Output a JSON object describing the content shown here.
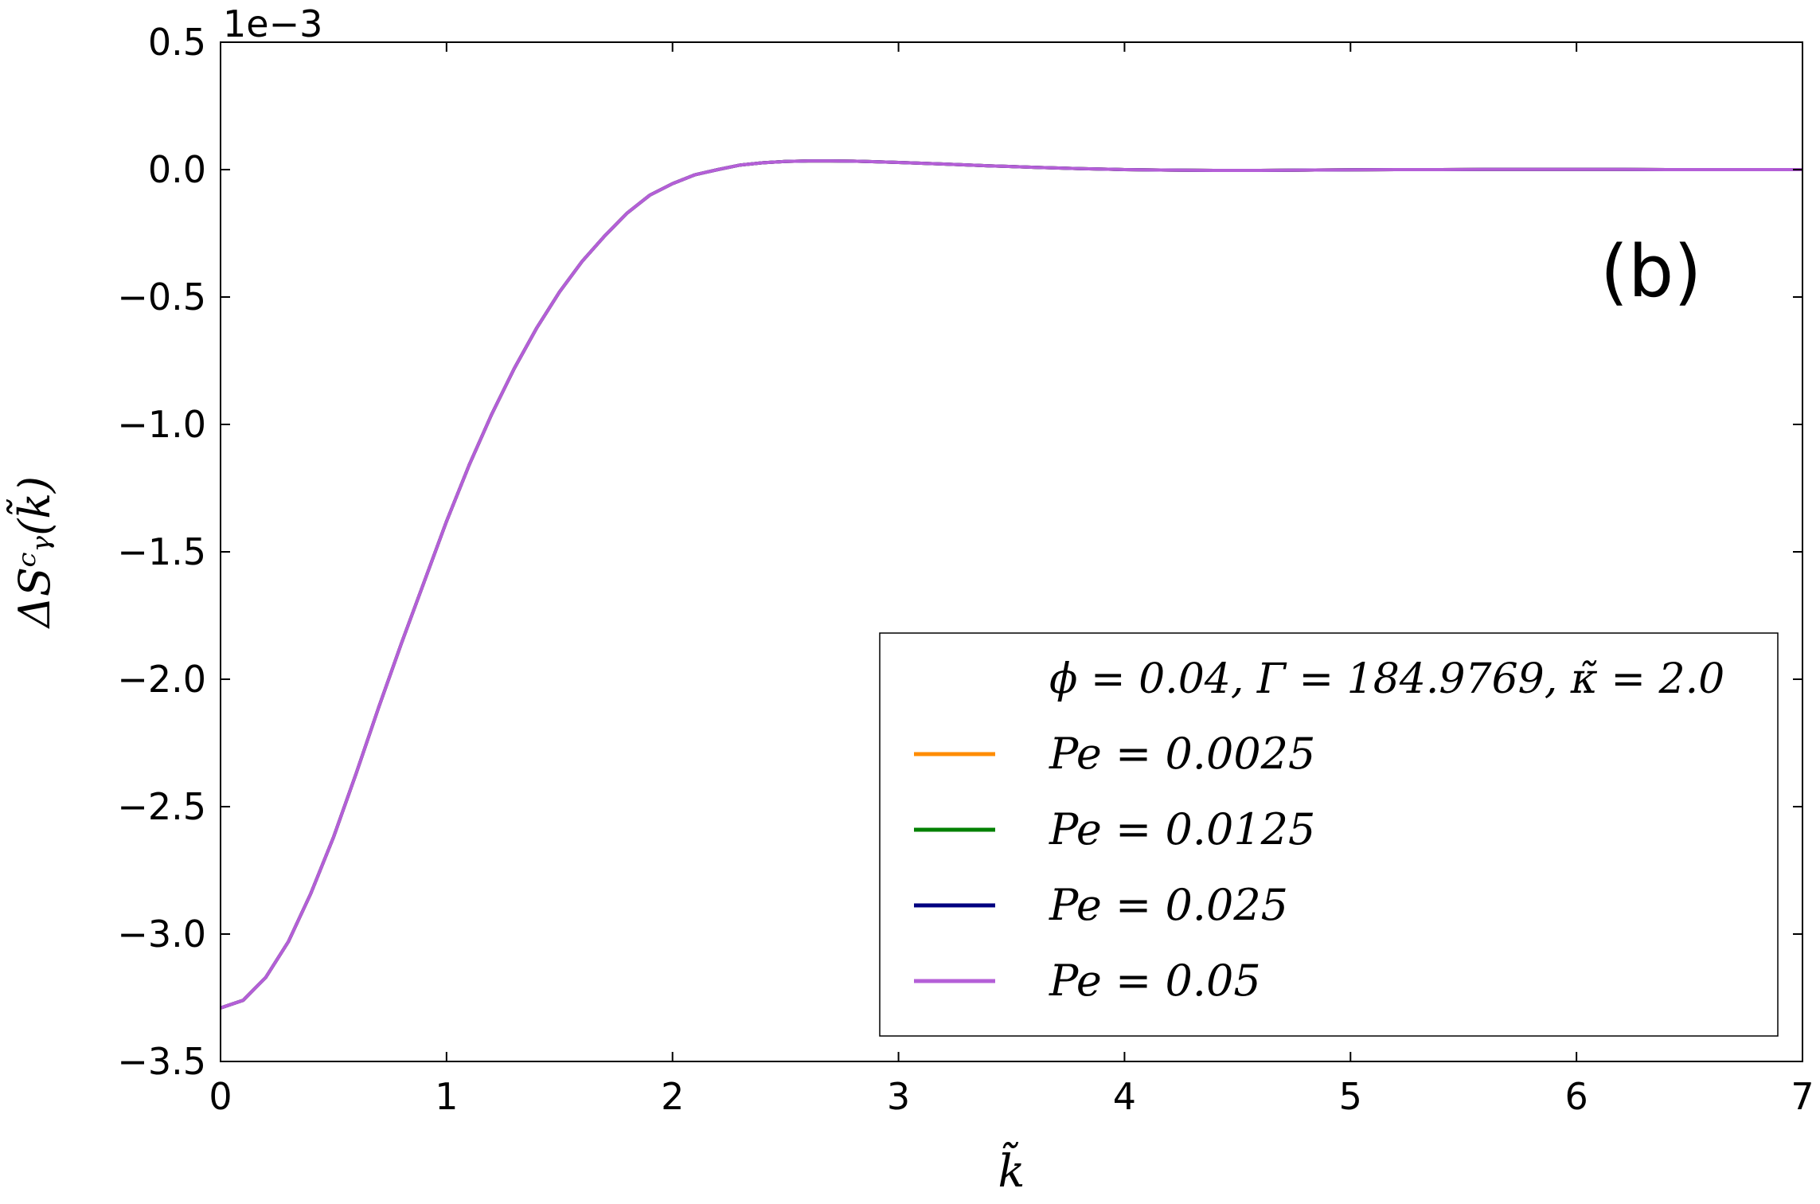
{
  "chart_data": {
    "type": "line",
    "title": "",
    "panel_label": "(b)",
    "xlabel": "k̃",
    "ylabel": "ΔSᶜᵧ(k̃)",
    "y_offset_text": "1e−3",
    "xlim": [
      0,
      7
    ],
    "ylim": [
      -3.5,
      0.5
    ],
    "y_multiplier": 0.001,
    "xticks": [
      0,
      1,
      2,
      3,
      4,
      5,
      6,
      7
    ],
    "xtick_labels": [
      "0",
      "1",
      "2",
      "3",
      "4",
      "5",
      "6",
      "7"
    ],
    "yticks": [
      0.5,
      0.0,
      -0.5,
      -1.0,
      -1.5,
      -2.0,
      -2.5,
      -3.0,
      -3.5
    ],
    "ytick_labels": [
      "0.5",
      "0.0",
      "−0.5",
      "−1.0",
      "−1.5",
      "−2.0",
      "−2.5",
      "−3.0",
      "−3.5"
    ],
    "grid": false,
    "legend": {
      "placement": "lower-right",
      "title": "ϕ = 0.04, Γ = 184.9769, κ̃ = 2.0"
    },
    "x": [
      0,
      0.1,
      0.2,
      0.3,
      0.4,
      0.5,
      0.6,
      0.7,
      0.8,
      0.9,
      1.0,
      1.1,
      1.2,
      1.3,
      1.4,
      1.5,
      1.6,
      1.7,
      1.8,
      1.9,
      2.0,
      2.1,
      2.2,
      2.3,
      2.4,
      2.5,
      2.6,
      2.7,
      2.8,
      2.9,
      3.0,
      3.2,
      3.4,
      3.6,
      3.8,
      4.0,
      4.2,
      4.4,
      4.6,
      4.8,
      5.0,
      5.2,
      5.4,
      5.6,
      5.8,
      6.0,
      6.2,
      6.4,
      6.6,
      6.8,
      7.0
    ],
    "series": [
      {
        "name": "Pe = 0.0025",
        "color": "#ff8c00",
        "values": [
          -3.29,
          -3.26,
          -3.17,
          -3.03,
          -2.84,
          -2.62,
          -2.37,
          -2.11,
          -1.86,
          -1.62,
          -1.38,
          -1.16,
          -0.96,
          -0.78,
          -0.62,
          -0.48,
          -0.36,
          -0.26,
          -0.17,
          -0.1,
          -0.055,
          -0.02,
          0.0,
          0.018,
          0.027,
          0.032,
          0.034,
          0.034,
          0.033,
          0.031,
          0.028,
          0.022,
          0.015,
          0.009,
          0.004,
          0.0,
          -0.002,
          -0.003,
          -0.003,
          -0.002,
          -0.001,
          0.0,
          0.0,
          0.001,
          0.001,
          0.001,
          0.001,
          0.0,
          0.0,
          0.0,
          0.0
        ]
      },
      {
        "name": "Pe = 0.0125",
        "color": "#008000",
        "values": [
          -3.29,
          -3.26,
          -3.17,
          -3.03,
          -2.84,
          -2.62,
          -2.37,
          -2.11,
          -1.86,
          -1.62,
          -1.38,
          -1.16,
          -0.96,
          -0.78,
          -0.62,
          -0.48,
          -0.36,
          -0.26,
          -0.17,
          -0.1,
          -0.055,
          -0.02,
          0.0,
          0.018,
          0.027,
          0.032,
          0.034,
          0.034,
          0.033,
          0.031,
          0.028,
          0.022,
          0.015,
          0.009,
          0.004,
          0.0,
          -0.002,
          -0.003,
          -0.003,
          -0.002,
          -0.001,
          0.0,
          0.0,
          0.001,
          0.001,
          0.001,
          0.001,
          0.0,
          0.0,
          0.0,
          0.0
        ]
      },
      {
        "name": "Pe = 0.025",
        "color": "#000080",
        "values": [
          -3.29,
          -3.26,
          -3.17,
          -3.03,
          -2.84,
          -2.62,
          -2.37,
          -2.11,
          -1.86,
          -1.62,
          -1.38,
          -1.16,
          -0.96,
          -0.78,
          -0.62,
          -0.48,
          -0.36,
          -0.26,
          -0.17,
          -0.1,
          -0.055,
          -0.02,
          0.0,
          0.018,
          0.027,
          0.032,
          0.034,
          0.034,
          0.033,
          0.031,
          0.028,
          0.022,
          0.015,
          0.009,
          0.004,
          0.0,
          -0.002,
          -0.003,
          -0.003,
          -0.002,
          -0.001,
          0.0,
          0.0,
          0.001,
          0.001,
          0.001,
          0.001,
          0.0,
          0.0,
          0.0,
          0.0
        ]
      },
      {
        "name": "Pe = 0.05",
        "color": "#b45fd7",
        "values": [
          -3.29,
          -3.26,
          -3.17,
          -3.03,
          -2.84,
          -2.62,
          -2.37,
          -2.11,
          -1.86,
          -1.62,
          -1.38,
          -1.16,
          -0.96,
          -0.78,
          -0.62,
          -0.48,
          -0.36,
          -0.26,
          -0.17,
          -0.1,
          -0.055,
          -0.02,
          0.0,
          0.018,
          0.027,
          0.032,
          0.034,
          0.034,
          0.033,
          0.031,
          0.028,
          0.022,
          0.015,
          0.009,
          0.004,
          0.0,
          -0.002,
          -0.003,
          -0.003,
          -0.002,
          -0.001,
          0.0,
          0.0,
          0.001,
          0.001,
          0.001,
          0.001,
          0.0,
          0.0,
          0.0,
          0.0
        ]
      }
    ]
  }
}
